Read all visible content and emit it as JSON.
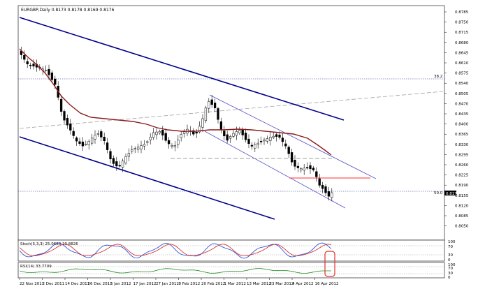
{
  "header": {
    "title": "EURGBP,Daily  0.8173 0.8178 0.8169 0.8176"
  },
  "price_axis": {
    "ticks": [
      "0.8785",
      "0.8750",
      "0.8715",
      "0.8680",
      "0.8645",
      "0.8610",
      "0.8575",
      "0.8540",
      "0.8505",
      "0.8470",
      "0.8435",
      "0.8400",
      "0.8365",
      "0.8330",
      "0.8295",
      "0.8260",
      "0.8225",
      "0.8190",
      "0.8155",
      "0.8120",
      "0.8085",
      "0.8050"
    ],
    "current_price": "0.8176"
  },
  "fib_labels": {
    "upper": "38.2",
    "lower": "50.0"
  },
  "date_axis": {
    "labels": [
      "22 Nov 2011",
      "2 Dec 2011",
      "14 Dec 2011",
      "26 Dec 2011",
      "5 Jan 2012",
      "17 Jan 2012",
      "27 Jan 2012",
      "8 Feb 2012",
      "20 Feb 2012",
      "1 Mar 2012",
      "13 Mar 2012",
      "23 Mar 2012",
      "4 Apr 2012",
      "16 Apr 2012"
    ]
  },
  "stoch": {
    "label": "Stoch(5,3,3) 25.0683 20.8826",
    "levels": [
      "100",
      "70",
      "30",
      "0"
    ],
    "colors": {
      "main": "#1f3fd0",
      "signal": "#d02020"
    }
  },
  "rsi": {
    "label": "RSI(14) 33.7709",
    "levels": [
      "100",
      "70",
      "30",
      "0"
    ],
    "color": "#1e8a1e"
  },
  "colors": {
    "bull": "#ffffff",
    "bear": "#000000",
    "ma": "#8b1a1a",
    "channel": "#00008b",
    "inner_channel": "#5050c8",
    "dotted": "#2f2f9f",
    "dashed_gray": "#a0a0a0",
    "red_line": "#ff3030",
    "highlight": "#e03030"
  }
}
